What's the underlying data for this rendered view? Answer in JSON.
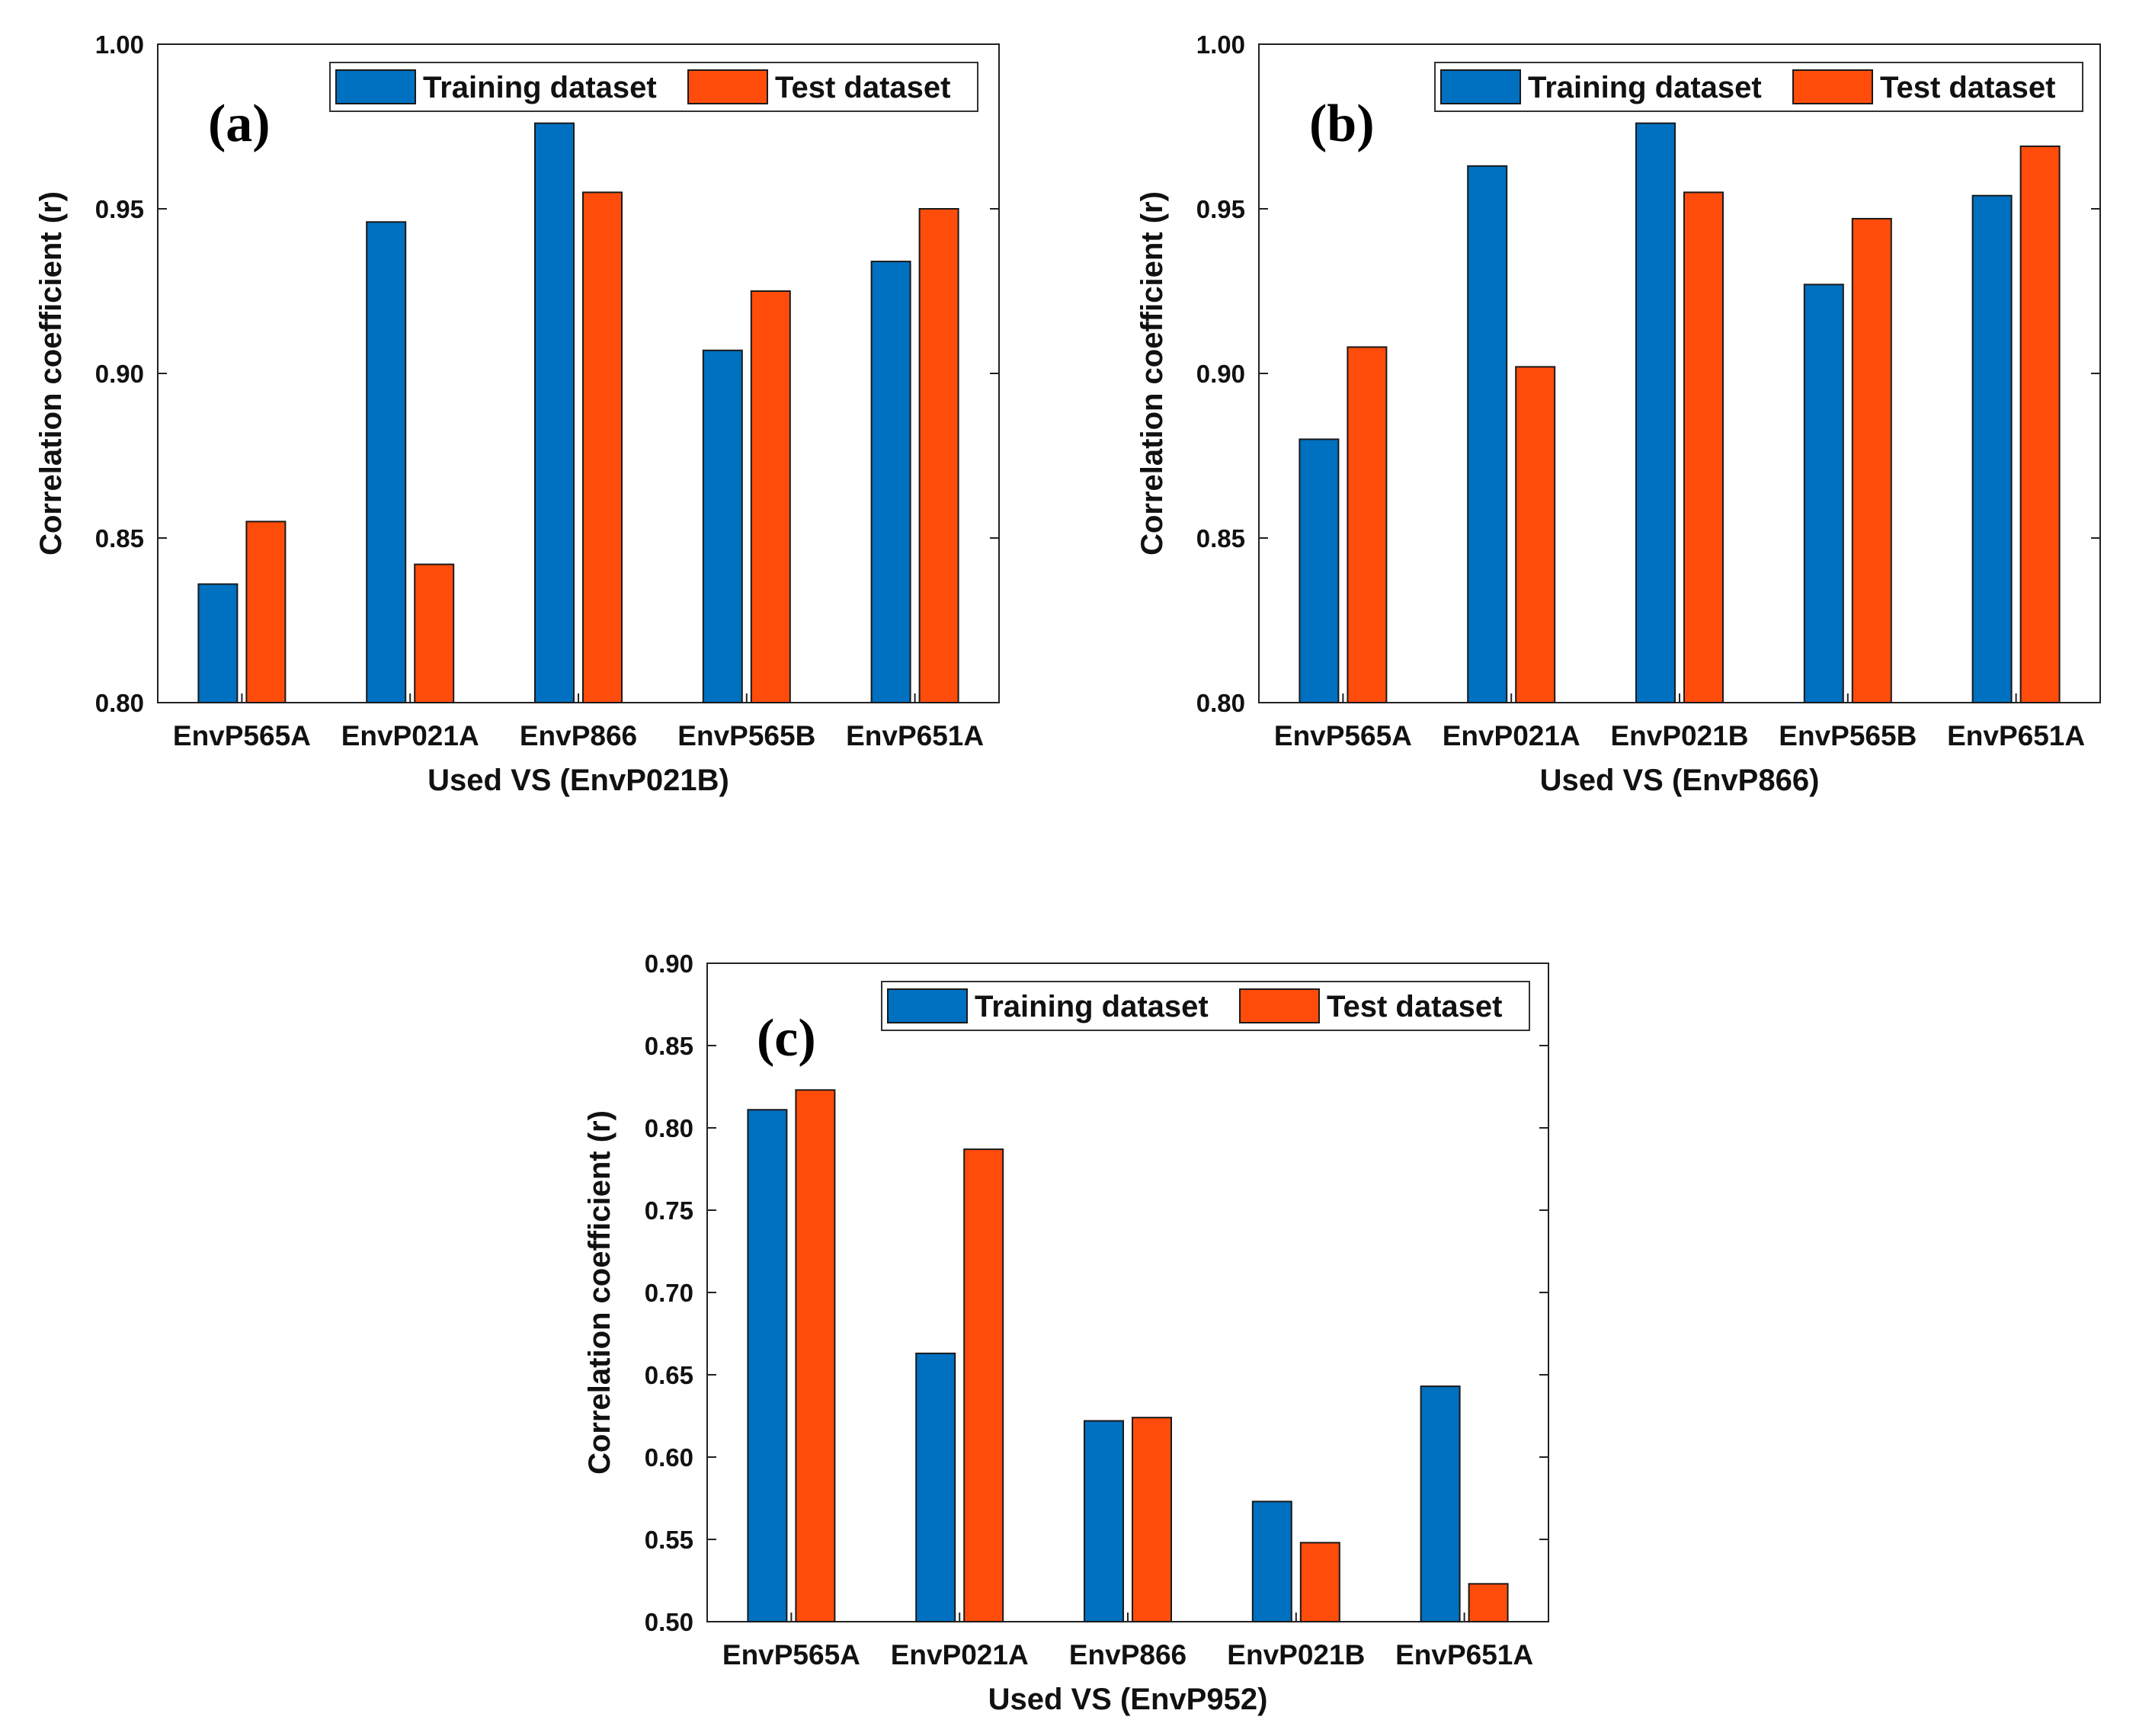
{
  "colors": {
    "training": "#0070C0",
    "test": "#FF4C0A",
    "axis": "#222222"
  },
  "chart_data": [
    {
      "type": "bar",
      "panel_label": "(a)",
      "xlabel": "Used VS (EnvP021B)",
      "ylabel": "Correlation coefficient (r)",
      "ylim": [
        0.8,
        1.0
      ],
      "yticks": [
        "0.80",
        "0.85",
        "0.90",
        "0.95",
        "1.00"
      ],
      "categories": [
        "EnvP565A",
        "EnvP021A",
        "EnvP866",
        "EnvP565B",
        "EnvP651A"
      ],
      "series": [
        {
          "name": "Training dataset",
          "values": [
            0.836,
            0.946,
            0.976,
            0.907,
            0.934
          ]
        },
        {
          "name": "Test dataset",
          "values": [
            0.855,
            0.842,
            0.955,
            0.925,
            0.95
          ]
        }
      ],
      "legend_position": "top-right"
    },
    {
      "type": "bar",
      "panel_label": "(b)",
      "xlabel": "Used VS (EnvP866)",
      "ylabel": "Correlation coefficient (r)",
      "ylim": [
        0.8,
        1.0
      ],
      "yticks": [
        "0.80",
        "0.85",
        "0.90",
        "0.95",
        "1.00"
      ],
      "categories": [
        "EnvP565A",
        "EnvP021A",
        "EnvP021B",
        "EnvP565B",
        "EnvP651A"
      ],
      "series": [
        {
          "name": "Training dataset",
          "values": [
            0.88,
            0.963,
            0.976,
            0.927,
            0.954
          ]
        },
        {
          "name": "Test dataset",
          "values": [
            0.908,
            0.902,
            0.955,
            0.947,
            0.969
          ]
        }
      ],
      "legend_position": "top-right"
    },
    {
      "type": "bar",
      "panel_label": "(c)",
      "xlabel": "Used VS (EnvP952)",
      "ylabel": "Correlation coefficient (r)",
      "ylim": [
        0.5,
        0.9
      ],
      "yticks": [
        "0.50",
        "0.55",
        "0.60",
        "0.65",
        "0.70",
        "0.75",
        "0.80",
        "0.85",
        "0.90"
      ],
      "categories": [
        "EnvP565A",
        "EnvP021A",
        "EnvP866",
        "EnvP021B",
        "EnvP651A"
      ],
      "series": [
        {
          "name": "Training dataset",
          "values": [
            0.811,
            0.663,
            0.622,
            0.573,
            0.643
          ]
        },
        {
          "name": "Test dataset",
          "values": [
            0.823,
            0.787,
            0.624,
            0.548,
            0.523
          ]
        }
      ],
      "legend_position": "top-right"
    }
  ]
}
